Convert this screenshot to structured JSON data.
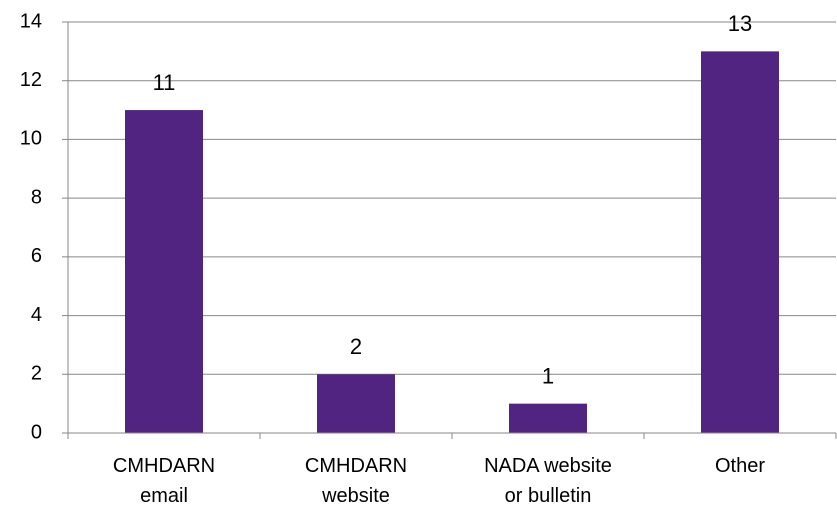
{
  "chart_data": {
    "type": "bar",
    "categories": [
      "CMHDARN\nemail",
      "CMHDARN\nwebsite",
      "NADA website\nor bulletin",
      "Other"
    ],
    "values": [
      11,
      2,
      1,
      13
    ],
    "color": "#512482",
    "ylim": [
      0,
      14
    ],
    "yticks": [
      0,
      2,
      4,
      6,
      8,
      10,
      12,
      14
    ],
    "grid": true
  }
}
